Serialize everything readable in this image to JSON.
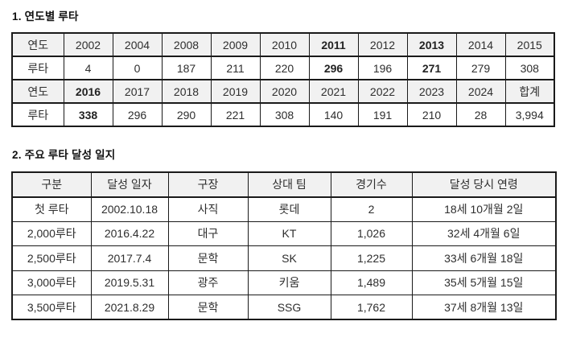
{
  "colors": {
    "header_bg": "#f1f1f1",
    "border": "#1a1a1a",
    "text": "#2e2e2e",
    "page_bg": "#ffffff"
  },
  "section1": {
    "title": "1. 연도별 루타",
    "table": {
      "rows": [
        {
          "header": true,
          "cells": [
            {
              "text": "연도"
            },
            {
              "text": "2002"
            },
            {
              "text": "2004"
            },
            {
              "text": "2008"
            },
            {
              "text": "2009"
            },
            {
              "text": "2010"
            },
            {
              "text": "2011",
              "bold": true
            },
            {
              "text": "2012"
            },
            {
              "text": "2013",
              "bold": true
            },
            {
              "text": "2014"
            },
            {
              "text": "2015"
            }
          ]
        },
        {
          "header": false,
          "cells": [
            {
              "text": "루타"
            },
            {
              "text": "4"
            },
            {
              "text": "0"
            },
            {
              "text": "187"
            },
            {
              "text": "211"
            },
            {
              "text": "220"
            },
            {
              "text": "296",
              "bold": true
            },
            {
              "text": "196"
            },
            {
              "text": "271",
              "bold": true
            },
            {
              "text": "279"
            },
            {
              "text": "308"
            }
          ]
        },
        {
          "header": true,
          "cells": [
            {
              "text": "연도"
            },
            {
              "text": "2016",
              "bold": true
            },
            {
              "text": "2017"
            },
            {
              "text": "2018"
            },
            {
              "text": "2019"
            },
            {
              "text": "2020"
            },
            {
              "text": "2021"
            },
            {
              "text": "2022"
            },
            {
              "text": "2023"
            },
            {
              "text": "2024"
            },
            {
              "text": "합계"
            }
          ]
        },
        {
          "header": false,
          "cells": [
            {
              "text": "루타"
            },
            {
              "text": "338",
              "bold": true
            },
            {
              "text": "296"
            },
            {
              "text": "290"
            },
            {
              "text": "221"
            },
            {
              "text": "308"
            },
            {
              "text": "140"
            },
            {
              "text": "191"
            },
            {
              "text": "210"
            },
            {
              "text": "28"
            },
            {
              "text": "3,994"
            }
          ]
        }
      ]
    }
  },
  "section2": {
    "title": "2. 주요 루타 달성 일지",
    "table": {
      "rows": [
        {
          "header": true,
          "cells": [
            {
              "text": "구분"
            },
            {
              "text": "달성 일자"
            },
            {
              "text": "구장"
            },
            {
              "text": "상대 팀"
            },
            {
              "text": "경기수"
            },
            {
              "text": "달성 당시 연령"
            }
          ]
        },
        {
          "header": false,
          "cells": [
            {
              "text": "첫 루타"
            },
            {
              "text": "2002.10.18"
            },
            {
              "text": "사직"
            },
            {
              "text": "롯데"
            },
            {
              "text": "2"
            },
            {
              "text": "18세 10개월 2일"
            }
          ]
        },
        {
          "header": false,
          "cells": [
            {
              "text": "2,000루타"
            },
            {
              "text": "2016.4.22"
            },
            {
              "text": "대구"
            },
            {
              "text": "KT"
            },
            {
              "text": "1,026"
            },
            {
              "text": "32세 4개월 6일"
            }
          ]
        },
        {
          "header": false,
          "cells": [
            {
              "text": "2,500루타"
            },
            {
              "text": "2017.7.4"
            },
            {
              "text": "문학"
            },
            {
              "text": "SK"
            },
            {
              "text": "1,225"
            },
            {
              "text": "33세 6개월 18일"
            }
          ]
        },
        {
          "header": false,
          "cells": [
            {
              "text": "3,000루타"
            },
            {
              "text": "2019.5.31"
            },
            {
              "text": "광주"
            },
            {
              "text": "키움"
            },
            {
              "text": "1,489"
            },
            {
              "text": "35세 5개월 15일"
            }
          ]
        },
        {
          "header": false,
          "cells": [
            {
              "text": "3,500루타"
            },
            {
              "text": "2021.8.29"
            },
            {
              "text": "문학"
            },
            {
              "text": "SSG"
            },
            {
              "text": "1,762"
            },
            {
              "text": "37세 8개월 13일"
            }
          ]
        }
      ]
    }
  }
}
